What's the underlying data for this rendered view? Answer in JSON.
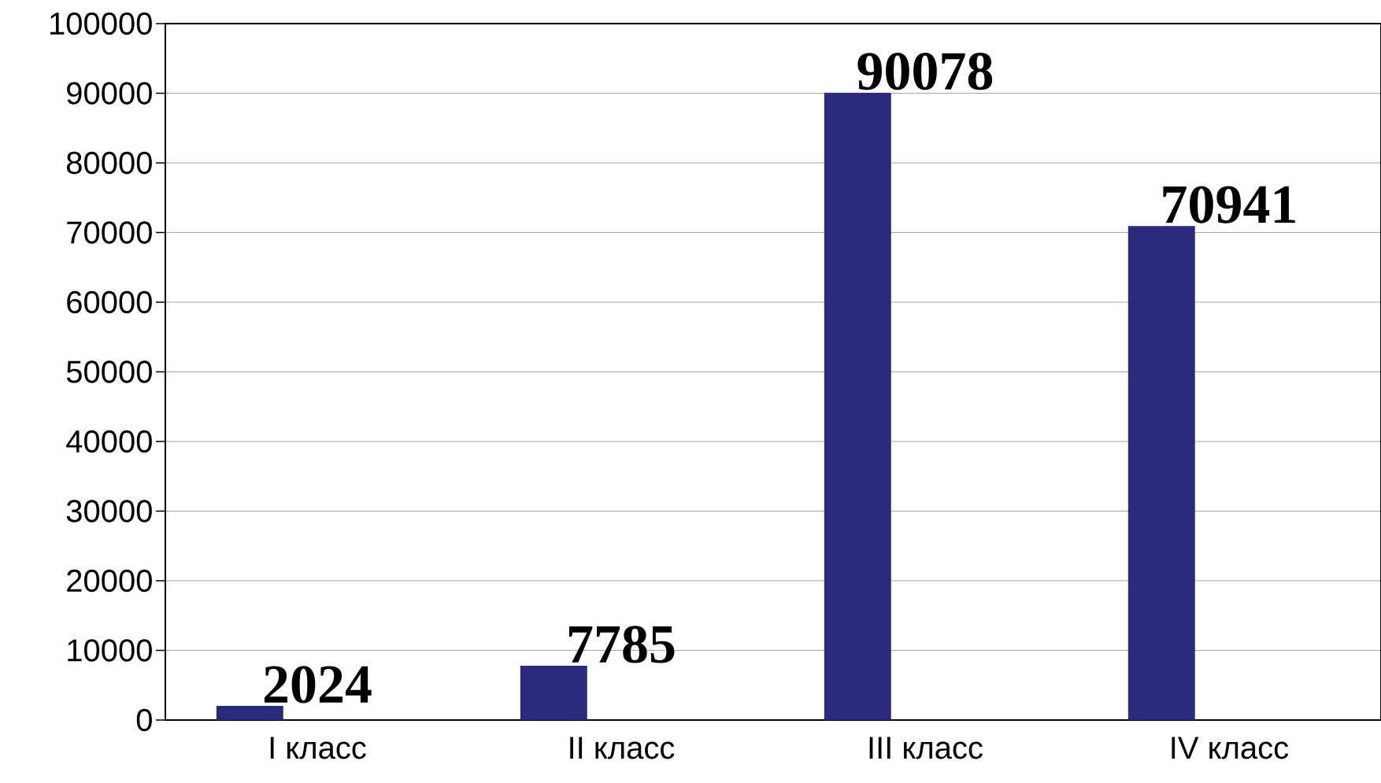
{
  "chart_data": {
    "type": "bar",
    "categories": [
      "I класс",
      "II класс",
      "III класс",
      "IV класс"
    ],
    "values": [
      2024,
      7785,
      90078,
      70941
    ],
    "color": "#2a2a7c",
    "data_labels": true,
    "ylim": [
      0,
      100000
    ],
    "yticks": [
      0,
      10000,
      20000,
      30000,
      40000,
      50000,
      60000,
      70000,
      80000,
      90000,
      100000
    ],
    "grid": "y"
  }
}
